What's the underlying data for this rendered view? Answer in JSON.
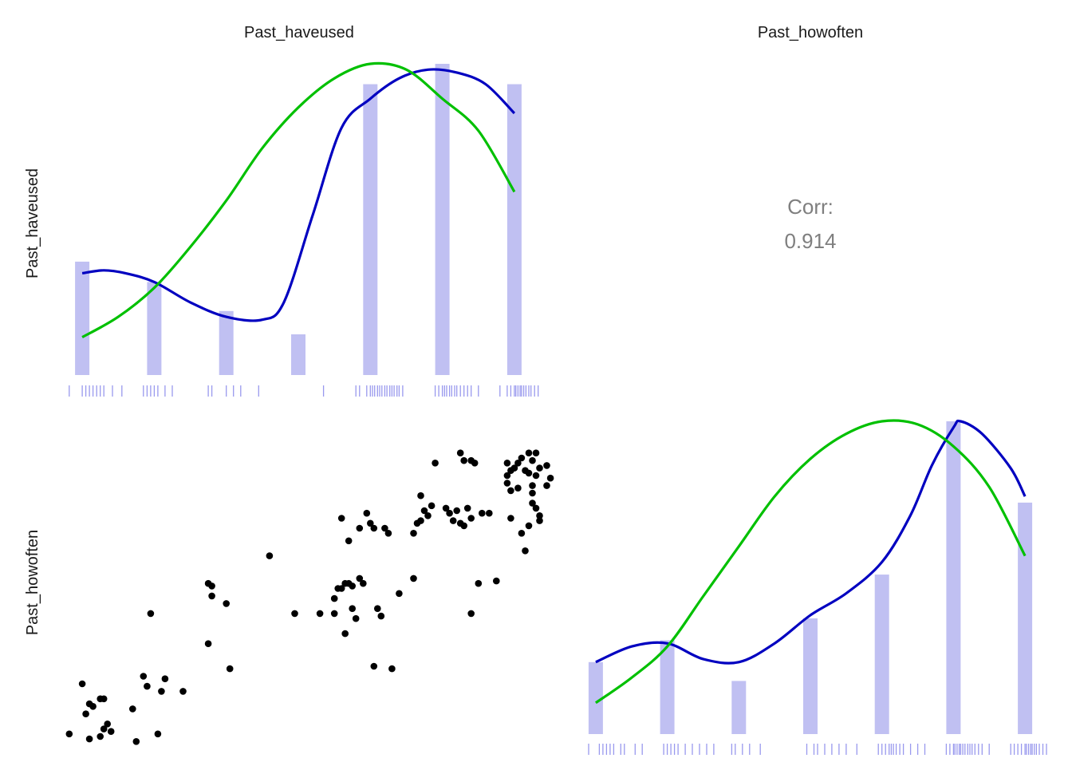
{
  "chart_data": {
    "type": "scatter",
    "variables": [
      "Past_haveused",
      "Past_howoften"
    ],
    "grid": false,
    "correlation": {
      "label": "Corr:",
      "value": "0.914"
    },
    "colors": {
      "bar": "#c0c0f2",
      "rug": "#9999ee",
      "density_blue": "#0000c0",
      "normal_green": "#00c000",
      "points": "#000000",
      "corr_text": "#7f7f7f"
    },
    "diag_haveused": {
      "xlim": [
        0.7,
        7.3
      ],
      "bars": [
        {
          "x": 1,
          "value": 0.39
        },
        {
          "x": 2,
          "value": 0.32
        },
        {
          "x": 3,
          "value": 0.22
        },
        {
          "x": 4,
          "value": 0.14
        },
        {
          "x": 5,
          "value": 1.0
        },
        {
          "x": 6,
          "value": 1.07
        },
        {
          "x": 7,
          "value": 1.0
        }
      ],
      "density": [
        [
          1,
          0.35
        ],
        [
          1.3,
          0.36
        ],
        [
          1.6,
          0.35
        ],
        [
          2,
          0.32
        ],
        [
          2.5,
          0.25
        ],
        [
          3,
          0.2
        ],
        [
          3.5,
          0.19
        ],
        [
          3.8,
          0.25
        ],
        [
          4.2,
          0.55
        ],
        [
          4.6,
          0.85
        ],
        [
          5,
          0.95
        ],
        [
          5.4,
          1.02
        ],
        [
          5.8,
          1.05
        ],
        [
          6.2,
          1.04
        ],
        [
          6.6,
          1.0
        ],
        [
          7,
          0.9
        ]
      ],
      "normal": [
        [
          1,
          0.13
        ],
        [
          1.5,
          0.2
        ],
        [
          2,
          0.3
        ],
        [
          2.5,
          0.44
        ],
        [
          3,
          0.6
        ],
        [
          3.5,
          0.78
        ],
        [
          4,
          0.92
        ],
        [
          4.5,
          1.02
        ],
        [
          5,
          1.07
        ],
        [
          5.5,
          1.05
        ],
        [
          6,
          0.95
        ],
        [
          6.5,
          0.84
        ],
        [
          7,
          0.63
        ]
      ],
      "rug": [
        0.82,
        1.0,
        1.05,
        1.1,
        1.15,
        1.2,
        1.25,
        1.3,
        1.42,
        1.55,
        1.85,
        1.9,
        1.95,
        2.0,
        2.05,
        2.15,
        2.25,
        2.75,
        2.8,
        3.0,
        3.1,
        3.2,
        3.45,
        4.35,
        4.8,
        4.85,
        4.95,
        5.0,
        5.03,
        5.06,
        5.1,
        5.13,
        5.16,
        5.2,
        5.23,
        5.27,
        5.3,
        5.33,
        5.37,
        5.4,
        5.45,
        5.9,
        5.95,
        6.0,
        6.03,
        6.06,
        6.1,
        6.13,
        6.17,
        6.2,
        6.25,
        6.3,
        6.35,
        6.4,
        6.5,
        6.8,
        6.9,
        6.95,
        7.0,
        7.02,
        7.05,
        7.08,
        7.1,
        7.13,
        7.16,
        7.2,
        7.23,
        7.28,
        7.33
      ]
    },
    "diag_howoften": {
      "xlim": [
        0.8,
        7.3
      ],
      "bars": [
        {
          "x": 1,
          "value": 0.23
        },
        {
          "x": 2,
          "value": 0.3
        },
        {
          "x": 3,
          "value": 0.17
        },
        {
          "x": 4,
          "value": 0.37
        },
        {
          "x": 5,
          "value": 0.51
        },
        {
          "x": 6,
          "value": 1.0
        },
        {
          "x": 7,
          "value": 0.74
        }
      ],
      "density": [
        [
          1,
          0.23
        ],
        [
          1.5,
          0.28
        ],
        [
          2,
          0.29
        ],
        [
          2.5,
          0.24
        ],
        [
          3,
          0.23
        ],
        [
          3.5,
          0.29
        ],
        [
          4,
          0.38
        ],
        [
          4.5,
          0.45
        ],
        [
          5,
          0.55
        ],
        [
          5.4,
          0.7
        ],
        [
          5.7,
          0.86
        ],
        [
          6,
          0.98
        ],
        [
          6.1,
          1.0
        ],
        [
          6.4,
          0.96
        ],
        [
          6.8,
          0.85
        ],
        [
          7,
          0.76
        ]
      ],
      "normal": [
        [
          1,
          0.1
        ],
        [
          1.5,
          0.18
        ],
        [
          2,
          0.28
        ],
        [
          2.5,
          0.44
        ],
        [
          3,
          0.6
        ],
        [
          3.5,
          0.76
        ],
        [
          4,
          0.88
        ],
        [
          4.5,
          0.96
        ],
        [
          5,
          1.0
        ],
        [
          5.5,
          0.99
        ],
        [
          6,
          0.92
        ],
        [
          6.5,
          0.79
        ],
        [
          7,
          0.57
        ]
      ],
      "rug": [
        0.9,
        1.05,
        1.1,
        1.15,
        1.2,
        1.25,
        1.35,
        1.4,
        1.55,
        1.65,
        1.95,
        2.0,
        2.05,
        2.1,
        2.15,
        2.25,
        2.35,
        2.45,
        2.55,
        2.65,
        2.9,
        2.95,
        3.05,
        3.15,
        3.3,
        3.95,
        4.05,
        4.1,
        4.2,
        4.3,
        4.4,
        4.5,
        4.65,
        4.95,
        5.0,
        5.05,
        5.1,
        5.13,
        5.16,
        5.2,
        5.25,
        5.3,
        5.4,
        5.5,
        5.6,
        5.9,
        5.95,
        6.0,
        6.02,
        6.05,
        6.08,
        6.1,
        6.13,
        6.16,
        6.2,
        6.23,
        6.26,
        6.3,
        6.35,
        6.4,
        6.5,
        6.8,
        6.85,
        6.9,
        6.95,
        7.0,
        7.02,
        7.05,
        7.08,
        7.1,
        7.13,
        7.16,
        7.2,
        7.25,
        7.3
      ]
    },
    "scatter": {
      "xlim": [
        0.7,
        7.3
      ],
      "ylim": [
        0.7,
        7.3
      ],
      "points": [
        [
          0.82,
          1.1
        ],
        [
          1.1,
          1.0
        ],
        [
          1.25,
          1.05
        ],
        [
          1.05,
          1.5
        ],
        [
          1.3,
          1.2
        ],
        [
          1.4,
          1.15
        ],
        [
          1.35,
          1.3
        ],
        [
          1.1,
          1.7
        ],
        [
          1.15,
          1.65
        ],
        [
          1.25,
          1.8
        ],
        [
          1.3,
          1.8
        ],
        [
          1.0,
          2.1
        ],
        [
          1.7,
          1.6
        ],
        [
          1.75,
          0.95
        ],
        [
          1.85,
          2.25
        ],
        [
          1.9,
          2.05
        ],
        [
          2.05,
          1.1
        ],
        [
          2.1,
          1.95
        ],
        [
          2.15,
          2.2
        ],
        [
          2.4,
          1.95
        ],
        [
          1.95,
          3.5
        ],
        [
          2.75,
          4.1
        ],
        [
          2.8,
          4.05
        ],
        [
          2.8,
          3.85
        ],
        [
          2.75,
          2.9
        ],
        [
          3.0,
          3.7
        ],
        [
          3.05,
          2.4
        ],
        [
          3.6,
          4.65
        ],
        [
          3.95,
          3.5
        ],
        [
          4.3,
          3.5
        ],
        [
          4.5,
          3.8
        ],
        [
          4.5,
          3.5
        ],
        [
          4.55,
          4.0
        ],
        [
          4.6,
          4.0
        ],
        [
          4.65,
          4.1
        ],
        [
          4.7,
          4.1
        ],
        [
          4.75,
          4.05
        ],
        [
          4.85,
          4.2
        ],
        [
          4.9,
          4.1
        ],
        [
          4.8,
          3.4
        ],
        [
          4.75,
          3.6
        ],
        [
          4.65,
          3.1
        ],
        [
          4.7,
          4.95
        ],
        [
          4.6,
          5.4
        ],
        [
          4.85,
          5.2
        ],
        [
          4.95,
          5.5
        ],
        [
          5.0,
          5.3
        ],
        [
          5.05,
          5.2
        ],
        [
          5.2,
          5.2
        ],
        [
          5.25,
          5.1
        ],
        [
          5.1,
          3.6
        ],
        [
          5.15,
          3.45
        ],
        [
          5.3,
          2.4
        ],
        [
          5.05,
          2.45
        ],
        [
          5.4,
          3.9
        ],
        [
          5.6,
          4.2
        ],
        [
          5.6,
          5.1
        ],
        [
          5.65,
          5.3
        ],
        [
          5.7,
          5.35
        ],
        [
          5.75,
          5.55
        ],
        [
          5.8,
          5.45
        ],
        [
          5.85,
          5.65
        ],
        [
          5.7,
          5.85
        ],
        [
          5.9,
          6.5
        ],
        [
          6.05,
          5.6
        ],
        [
          6.1,
          5.5
        ],
        [
          6.15,
          5.35
        ],
        [
          6.2,
          5.55
        ],
        [
          6.25,
          5.3
        ],
        [
          6.3,
          5.25
        ],
        [
          6.35,
          5.6
        ],
        [
          6.4,
          5.4
        ],
        [
          6.55,
          5.5
        ],
        [
          6.65,
          5.5
        ],
        [
          6.5,
          4.1
        ],
        [
          6.4,
          3.5
        ],
        [
          6.75,
          4.15
        ],
        [
          6.45,
          6.5
        ],
        [
          6.4,
          6.55
        ],
        [
          6.3,
          6.55
        ],
        [
          6.25,
          6.7
        ],
        [
          6.9,
          6.5
        ],
        [
          6.9,
          6.25
        ],
        [
          6.95,
          6.35
        ],
        [
          7.0,
          6.4
        ],
        [
          7.05,
          6.5
        ],
        [
          7.1,
          6.6
        ],
        [
          7.2,
          6.7
        ],
        [
          7.25,
          6.55
        ],
        [
          7.3,
          6.7
        ],
        [
          7.2,
          6.3
        ],
        [
          6.9,
          6.1
        ],
        [
          6.95,
          5.95
        ],
        [
          7.05,
          6.0
        ],
        [
          7.15,
          6.35
        ],
        [
          7.25,
          6.05
        ],
        [
          7.3,
          6.25
        ],
        [
          7.35,
          6.4
        ],
        [
          7.25,
          5.9
        ],
        [
          7.3,
          5.6
        ],
        [
          7.35,
          5.45
        ],
        [
          7.1,
          5.1
        ],
        [
          7.15,
          4.75
        ],
        [
          7.2,
          5.25
        ],
        [
          6.95,
          5.4
        ],
        [
          7.25,
          5.7
        ],
        [
          7.45,
          6.45
        ],
        [
          7.5,
          6.2
        ],
        [
          7.45,
          6.05
        ],
        [
          7.35,
          5.35
        ]
      ]
    },
    "labels": {
      "strip_x1": "Past_haveused",
      "strip_x2": "Past_howoften",
      "strip_y1": "Past_haveused",
      "strip_y2": "Past_howoften"
    }
  }
}
